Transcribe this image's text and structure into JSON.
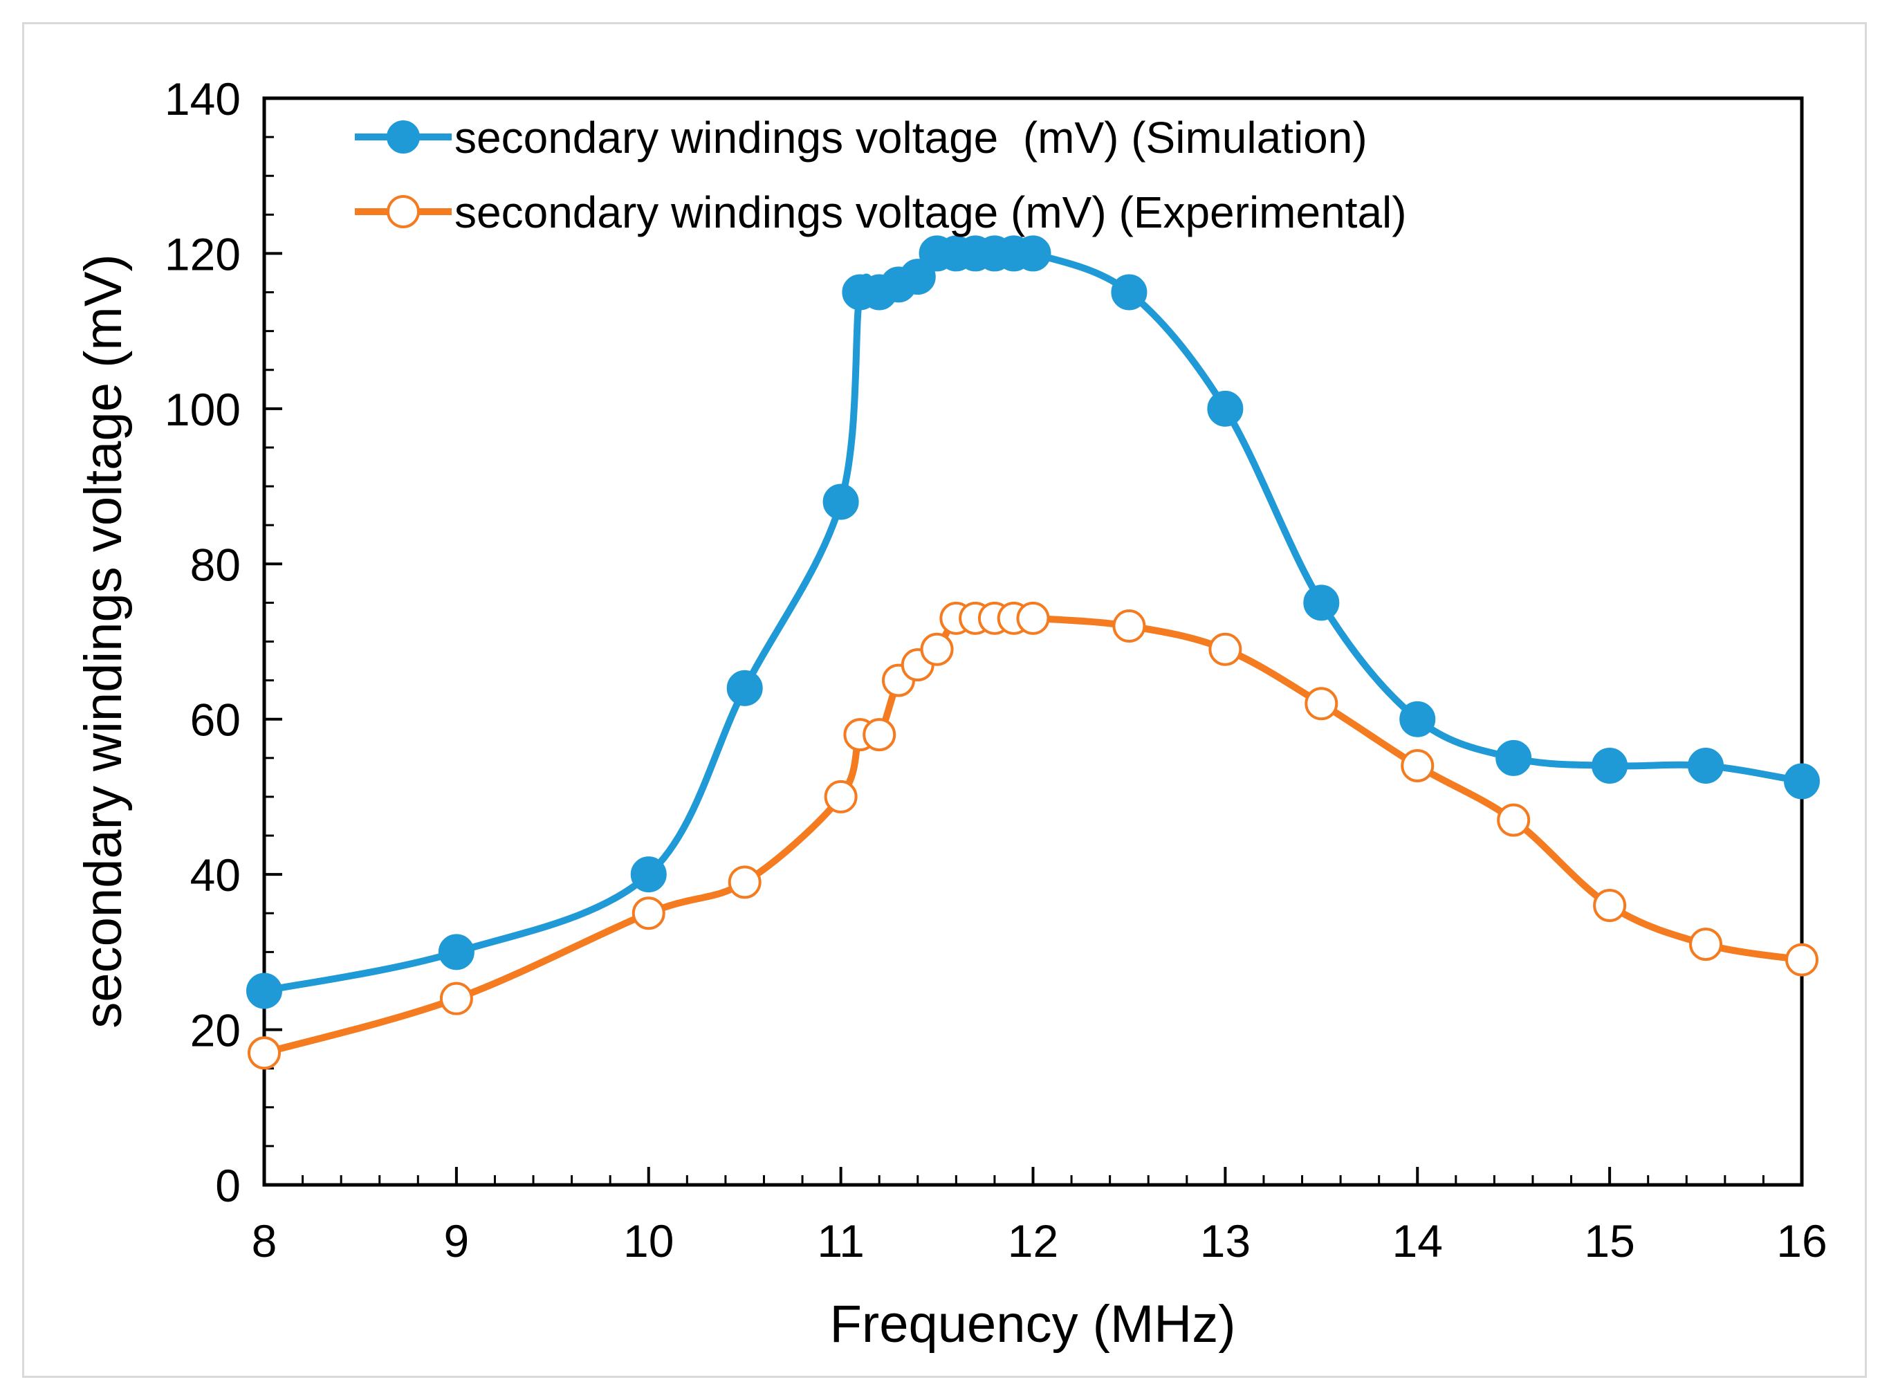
{
  "chart_data": {
    "type": "line",
    "title": "",
    "xlabel": "Frequency (MHz)",
    "ylabel": "secondary windings voltage (mV)",
    "xlim": [
      8,
      16
    ],
    "ylim": [
      0,
      140
    ],
    "x_ticks": [
      8,
      9,
      10,
      11,
      12,
      13,
      14,
      15,
      16
    ],
    "x_tick_labels": [
      "8",
      "9",
      "10",
      "11",
      "12",
      "13",
      "14",
      "15",
      "16"
    ],
    "y_ticks": [
      0,
      20,
      40,
      60,
      80,
      100,
      120,
      140
    ],
    "y_tick_labels": [
      "0",
      "20",
      "40",
      "60",
      "80",
      "100",
      "120",
      "140"
    ],
    "grid": false,
    "legend_position": "top-left",
    "series": [
      {
        "name": "secondary windings voltage  (mV) (Simulation)",
        "color": "#1f9ad6",
        "marker": "filled-circle",
        "x": [
          8,
          9,
          10,
          10.5,
          11,
          11.1,
          11.2,
          11.3,
          11.4,
          11.5,
          11.6,
          11.7,
          11.8,
          11.9,
          12,
          12.5,
          13,
          13.5,
          14,
          14.5,
          15,
          15.5,
          16
        ],
        "y": [
          25,
          30,
          40,
          64,
          88,
          115,
          115,
          116,
          117,
          120,
          120,
          120,
          120,
          120,
          120,
          115,
          100,
          75,
          60,
          55,
          54,
          54,
          52
        ]
      },
      {
        "name": "secondary windings voltage (mV) (Experimental)",
        "color": "#f47b20",
        "marker": "open-circle",
        "x": [
          8,
          9,
          10,
          10.5,
          11,
          11.1,
          11.2,
          11.3,
          11.4,
          11.5,
          11.6,
          11.7,
          11.8,
          11.9,
          12,
          12.5,
          13,
          13.5,
          14,
          14.5,
          15,
          15.5,
          16
        ],
        "y": [
          17,
          24,
          35,
          39,
          50,
          58,
          58,
          65,
          67,
          69,
          73,
          73,
          73,
          73,
          73,
          72,
          69,
          62,
          54,
          47,
          36,
          31,
          29
        ]
      }
    ]
  }
}
